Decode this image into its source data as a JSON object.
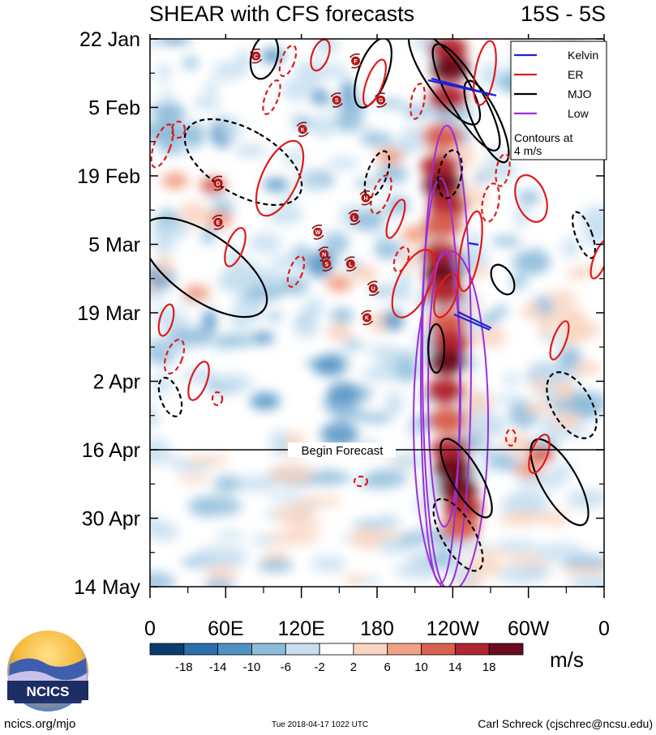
{
  "chart_data": {
    "type": "heatmap",
    "title": "SHEAR with CFS forecasts",
    "region": "15S - 5S",
    "x_tick_labels": [
      "0",
      "60E",
      "120E",
      "180",
      "120W",
      "60W",
      "0"
    ],
    "y_tick_labels": [
      "22 Jan",
      "5 Feb",
      "19 Feb",
      "5 Mar",
      "19 Mar",
      "2 Apr",
      "16 Apr",
      "30 Apr",
      "14 May"
    ],
    "xlim": [
      0,
      360
    ],
    "y_days_range": [
      0,
      112
    ],
    "forecast_line_day": 84,
    "forecast_label": "Begin Forecast",
    "colorbar": {
      "unit": "m/s",
      "levels": [
        "-18",
        "-14",
        "-10",
        "-6",
        "-2",
        "2",
        "6",
        "10",
        "14",
        "18"
      ],
      "colors": [
        "#0b3c6e",
        "#2c6fac",
        "#4f92c3",
        "#8dbcdb",
        "#c7dff0",
        "#ffffff",
        "#f9d4c0",
        "#f1a184",
        "#d86150",
        "#b22533",
        "#6b0b1f"
      ]
    },
    "legend": {
      "items": [
        {
          "name": "Kelvin",
          "color": "#1f1fd6"
        },
        {
          "name": "ER",
          "color": "#e01a1a"
        },
        {
          "name": "MJO",
          "color": "#000000"
        },
        {
          "name": "Low",
          "color": "#9b30d9"
        }
      ],
      "note_line1": "Contours at",
      "note_line2": "4 m/s"
    },
    "storm_symbols": [
      {
        "label": "C",
        "lon": 84,
        "day": 3.5
      },
      {
        "label": "F",
        "lon": 163,
        "day": 4.5
      },
      {
        "label": "S",
        "lon": 148,
        "day": 12.5
      },
      {
        "label": "G",
        "lon": 183,
        "day": 12.5
      },
      {
        "label": "K",
        "lon": 121,
        "day": 18.5
      },
      {
        "label": "D",
        "lon": 54,
        "day": 29.5
      },
      {
        "label": "H",
        "lon": 171,
        "day": 32.5
      },
      {
        "label": "L",
        "lon": 162,
        "day": 36.5
      },
      {
        "label": "E",
        "lon": 54,
        "day": 37.5
      },
      {
        "label": "W",
        "lon": 133,
        "day": 39.5
      },
      {
        "label": "N",
        "lon": 138,
        "day": 44
      },
      {
        "label": "S",
        "lon": 140,
        "day": 46
      },
      {
        "label": "L",
        "lon": 159,
        "day": 46
      },
      {
        "label": "U",
        "lon": 177,
        "day": 51
      },
      {
        "label": "K",
        "lon": 172,
        "day": 57
      }
    ]
  },
  "footer": {
    "logo_text": "NCICS",
    "left": "ncics.org/mjo",
    "center": "Tue 2018-04-17 1022 UTC",
    "right": "Carl Schreck (cjschrec@ncsu.edu)"
  }
}
